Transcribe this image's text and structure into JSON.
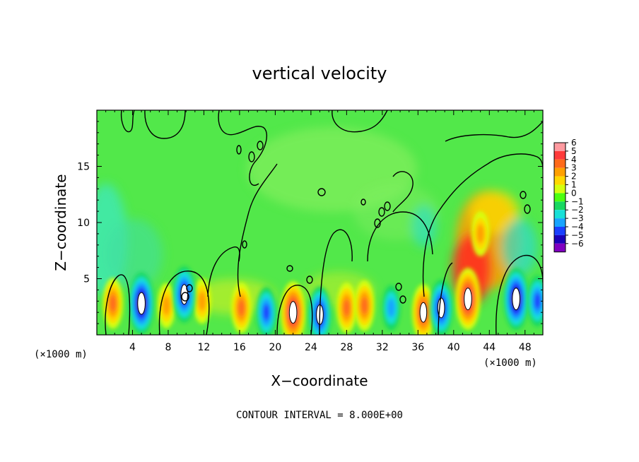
{
  "chart_data": {
    "type": "heatmap",
    "title": "vertical velocity",
    "xlabel": "X−coordinate",
    "ylabel": "Z−coordinate",
    "x_unit_left": "(×1000 m)",
    "x_unit_right": "(×1000 m)",
    "xlim": [
      0,
      50
    ],
    "ylim": [
      0,
      20
    ],
    "x_ticks": [
      4,
      8,
      12,
      16,
      20,
      24,
      28,
      32,
      36,
      40,
      44,
      48
    ],
    "y_ticks": [
      5,
      10,
      15
    ],
    "x_tick_labels": [
      "4",
      "8",
      "12",
      "16",
      "20",
      "24",
      "28",
      "32",
      "36",
      "40",
      "44",
      "48"
    ],
    "y_tick_labels": [
      "5",
      "10",
      "15"
    ],
    "colorbar": {
      "labels": [
        "6",
        "5",
        "4",
        "3",
        "2",
        "1",
        "0",
        "−1",
        "−2",
        "−3",
        "−4",
        "−5",
        "−6"
      ],
      "colors": [
        "#ff9aa0",
        "#ff3a3a",
        "#ff6a1a",
        "#ffa000",
        "#ffd800",
        "#d4ff10",
        "#4cff10",
        "#18d860",
        "#18e0d8",
        "#18a4ff",
        "#1a40ff",
        "#1a00b8",
        "#8000c0"
      ]
    },
    "background_color": "#52e84a",
    "updraft_cores": [
      {
        "x": 1.8,
        "z": 2.8,
        "w": 4
      },
      {
        "x": 7.8,
        "z": 2.6,
        "w": 3
      },
      {
        "x": 11.8,
        "z": 3.0,
        "w": 3
      },
      {
        "x": 16.2,
        "z": 2.4,
        "w": 4
      },
      {
        "x": 22.0,
        "z": 2.0,
        "w": 6
      },
      {
        "x": 28.0,
        "z": 2.4,
        "w": 4
      },
      {
        "x": 30.0,
        "z": 2.6,
        "w": 4
      },
      {
        "x": 36.6,
        "z": 2.0,
        "w": 5
      },
      {
        "x": 41.6,
        "z": 3.2,
        "w": 6
      },
      {
        "x": 43.0,
        "z": 9.0,
        "w": 3
      }
    ],
    "downdraft_cores": [
      {
        "x": 5.0,
        "z": 2.8,
        "w": -6
      },
      {
        "x": 9.8,
        "z": 3.6,
        "w": -5
      },
      {
        "x": 19.0,
        "z": 2.0,
        "w": -4
      },
      {
        "x": 25.0,
        "z": 1.8,
        "w": -5
      },
      {
        "x": 33.0,
        "z": 2.4,
        "w": -3
      },
      {
        "x": 38.6,
        "z": 2.4,
        "w": -5
      },
      {
        "x": 47.0,
        "z": 3.2,
        "w": -6
      },
      {
        "x": 49.4,
        "z": 3.0,
        "w": -4
      }
    ],
    "contour_interval_text": "CONTOUR INTERVAL = 8.000E+00"
  }
}
